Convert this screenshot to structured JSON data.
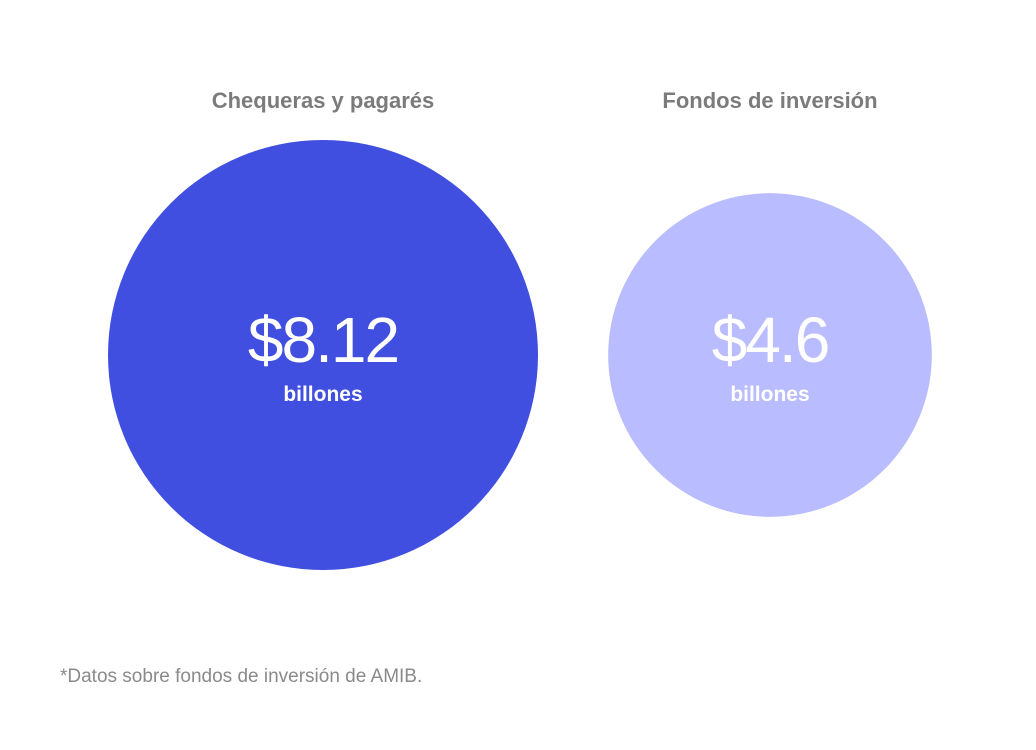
{
  "chart_data": {
    "type": "bubble",
    "title": "",
    "unit": "billones",
    "series": [
      {
        "category": "Chequeras y pagarés",
        "value": 8.12,
        "value_label": "$8.12",
        "unit_label": "billones",
        "color": "#414fe0"
      },
      {
        "category": "Fondos de inversión",
        "value": 4.6,
        "value_label": "$4.6",
        "unit_label": "billones",
        "color": "#b9bcff"
      }
    ],
    "legend": "none",
    "grid": false
  },
  "footnote": "*Datos sobre fondos de inversión de AMIB."
}
